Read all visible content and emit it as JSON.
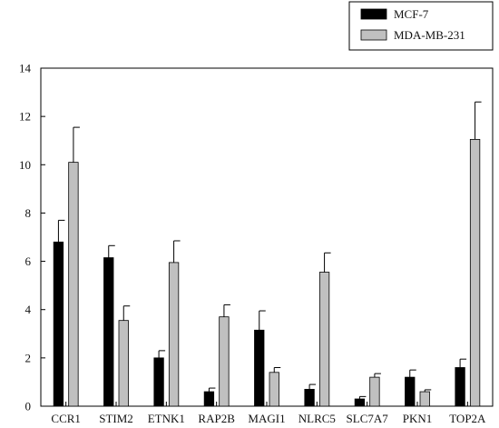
{
  "chart_data": {
    "type": "bar",
    "categories": [
      "CCR1",
      "STIM2",
      "ETNK1",
      "RAP2B",
      "MAGI1",
      "NLRC5",
      "SLC7A7",
      "PKN1",
      "TOP2A"
    ],
    "series": [
      {
        "name": "MCF-7",
        "color": "#000000",
        "values": [
          6.8,
          6.15,
          2.0,
          0.6,
          3.15,
          0.7,
          0.3,
          1.2,
          1.6
        ],
        "errors": [
          0.9,
          0.5,
          0.3,
          0.15,
          0.8,
          0.2,
          0.1,
          0.3,
          0.35
        ]
      },
      {
        "name": "MDA-MB-231",
        "color": "#c0c0c0",
        "values": [
          10.1,
          3.55,
          5.95,
          3.7,
          1.4,
          5.55,
          1.2,
          0.6,
          11.05
        ],
        "errors": [
          1.45,
          0.6,
          0.9,
          0.5,
          0.2,
          0.8,
          0.15,
          0.08,
          1.55
        ]
      }
    ],
    "yticks": [
      0,
      2,
      4,
      6,
      8,
      10,
      12,
      14
    ],
    "ylim": [
      0,
      14
    ],
    "title": "",
    "xlabel": "",
    "ylabel": "",
    "legend_position": "top-right",
    "grid": false
  }
}
